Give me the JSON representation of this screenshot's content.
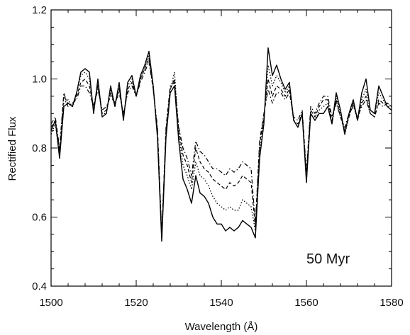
{
  "chart_data": {
    "type": "line",
    "title": "",
    "xlabel": "Wavelength (Å)",
    "ylabel": "Rectified Flux",
    "xlim": [
      1500,
      1580
    ],
    "ylim": [
      0.4,
      1.2
    ],
    "xticks": [
      1500,
      1520,
      1540,
      1560,
      1580
    ],
    "xtick_labels": [
      "1500",
      "1520",
      "1540",
      "1560",
      "1580"
    ],
    "yticks": [
      0.4,
      0.6,
      0.8,
      1.0,
      1.2
    ],
    "ytick_labels": [
      "0.4",
      "0.6",
      "0.8",
      "1.0",
      "1.2"
    ],
    "grid": false,
    "legend": "none",
    "annotation": "50 Myr",
    "line_color": "#000000",
    "x": [
      1500,
      1501,
      1502,
      1503,
      1504,
      1505,
      1506,
      1507,
      1508,
      1509,
      1510,
      1511,
      1512,
      1513,
      1514,
      1515,
      1516,
      1517,
      1518,
      1519,
      1520,
      1521,
      1522,
      1523,
      1524,
      1525,
      1526,
      1527,
      1528,
      1529,
      1530,
      1531,
      1532,
      1533,
      1534,
      1535,
      1536,
      1537,
      1538,
      1539,
      1540,
      1541,
      1542,
      1543,
      1544,
      1545,
      1546,
      1547,
      1548,
      1549,
      1550,
      1551,
      1552,
      1553,
      1554,
      1555,
      1556,
      1557,
      1558,
      1559,
      1560,
      1561,
      1562,
      1563,
      1564,
      1565,
      1566,
      1567,
      1568,
      1569,
      1570,
      1571,
      1572,
      1573,
      1574,
      1575,
      1576,
      1577,
      1578,
      1579,
      1580
    ],
    "series": [
      {
        "style": "solid",
        "values": [
          0.85,
          0.88,
          0.77,
          0.92,
          0.93,
          0.92,
          0.96,
          1.02,
          1.03,
          1.02,
          0.9,
          1.0,
          0.89,
          0.9,
          0.98,
          0.92,
          0.99,
          0.88,
          0.99,
          1.01,
          0.95,
          1.01,
          1.04,
          1.08,
          0.98,
          0.83,
          0.53,
          0.83,
          0.96,
          0.98,
          0.82,
          0.71,
          0.68,
          0.64,
          0.72,
          0.67,
          0.66,
          0.64,
          0.6,
          0.58,
          0.58,
          0.56,
          0.57,
          0.56,
          0.57,
          0.59,
          0.58,
          0.57,
          0.54,
          0.77,
          0.87,
          1.09,
          1.01,
          1.04,
          1.0,
          0.97,
          0.99,
          0.88,
          0.86,
          0.9,
          0.7,
          0.9,
          0.88,
          0.9,
          0.9,
          0.92,
          0.87,
          0.96,
          0.91,
          0.84,
          0.9,
          0.94,
          0.88,
          0.96,
          1.0,
          0.91,
          0.9,
          0.98,
          0.95,
          0.92,
          0.91
        ]
      },
      {
        "style": "dotted",
        "values": [
          0.84,
          0.87,
          0.78,
          0.93,
          0.94,
          0.92,
          0.96,
          1.01,
          1.02,
          1.0,
          0.91,
          0.99,
          0.9,
          0.9,
          0.97,
          0.92,
          0.98,
          0.89,
          0.98,
          1.0,
          0.95,
          1.0,
          1.03,
          1.07,
          0.98,
          0.84,
          0.54,
          0.84,
          0.97,
          1.02,
          0.84,
          0.75,
          0.72,
          0.68,
          0.76,
          0.72,
          0.71,
          0.69,
          0.66,
          0.64,
          0.63,
          0.62,
          0.63,
          0.62,
          0.62,
          0.65,
          0.64,
          0.63,
          0.56,
          0.79,
          0.88,
          1.04,
          0.98,
          1.01,
          0.99,
          0.96,
          0.98,
          0.88,
          0.86,
          0.9,
          0.71,
          0.9,
          0.88,
          0.91,
          0.92,
          0.93,
          0.87,
          0.95,
          0.9,
          0.84,
          0.89,
          0.93,
          0.88,
          0.94,
          0.97,
          0.91,
          0.9,
          0.96,
          0.94,
          0.92,
          0.92
        ]
      },
      {
        "style": "dashed",
        "values": [
          0.86,
          0.88,
          0.79,
          0.95,
          0.93,
          0.92,
          0.95,
          0.99,
          1.0,
          0.98,
          0.92,
          0.98,
          0.9,
          0.91,
          0.96,
          0.93,
          0.97,
          0.89,
          0.97,
          0.99,
          0.95,
          1.0,
          1.03,
          1.06,
          0.97,
          0.85,
          0.55,
          0.85,
          0.97,
          1.0,
          0.85,
          0.78,
          0.75,
          0.7,
          0.8,
          0.76,
          0.74,
          0.73,
          0.71,
          0.7,
          0.69,
          0.68,
          0.7,
          0.69,
          0.7,
          0.72,
          0.71,
          0.7,
          0.57,
          0.81,
          0.89,
          1.0,
          0.95,
          0.98,
          0.97,
          0.95,
          0.97,
          0.88,
          0.87,
          0.9,
          0.72,
          0.91,
          0.89,
          0.92,
          0.94,
          0.94,
          0.88,
          0.94,
          0.89,
          0.85,
          0.89,
          0.93,
          0.88,
          0.93,
          0.95,
          0.9,
          0.89,
          0.94,
          0.93,
          0.93,
          0.92
        ]
      },
      {
        "style": "dashdot",
        "values": [
          0.87,
          0.89,
          0.8,
          0.96,
          0.92,
          0.93,
          0.94,
          0.98,
          0.98,
          0.96,
          0.92,
          0.97,
          0.91,
          0.92,
          0.95,
          0.93,
          0.96,
          0.9,
          0.96,
          0.98,
          0.95,
          0.99,
          1.02,
          1.05,
          0.97,
          0.86,
          0.55,
          0.86,
          0.98,
          0.99,
          0.86,
          0.8,
          0.77,
          0.72,
          0.82,
          0.79,
          0.78,
          0.76,
          0.74,
          0.74,
          0.73,
          0.72,
          0.74,
          0.73,
          0.74,
          0.76,
          0.75,
          0.74,
          0.58,
          0.82,
          0.9,
          0.97,
          0.93,
          0.96,
          0.96,
          0.94,
          0.96,
          0.89,
          0.88,
          0.91,
          0.73,
          0.92,
          0.9,
          0.93,
          0.95,
          0.95,
          0.89,
          0.93,
          0.89,
          0.86,
          0.9,
          0.92,
          0.89,
          0.92,
          0.94,
          0.9,
          0.89,
          0.93,
          0.92,
          0.93,
          0.92
        ]
      }
    ]
  }
}
